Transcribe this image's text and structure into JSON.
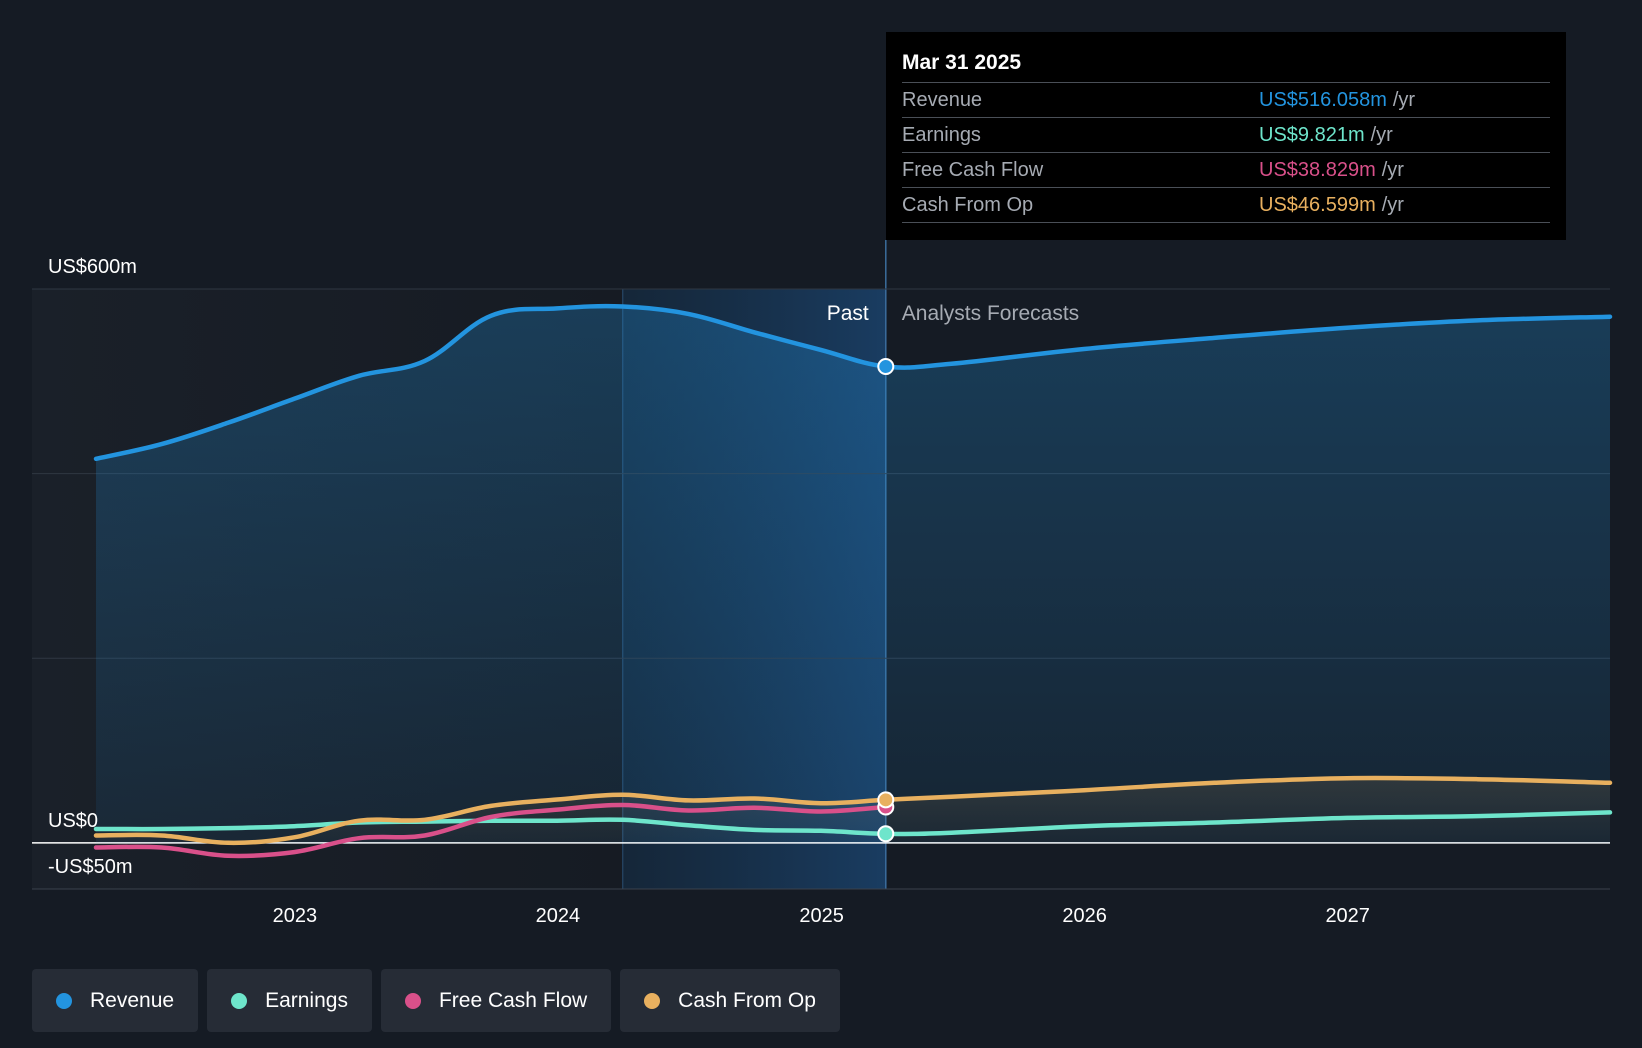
{
  "colors": {
    "background": "#151b24",
    "revenue": "#2394df",
    "earnings": "#6ee5cb",
    "free_cash_flow": "#d9508a",
    "cash_from_op": "#e8b05f"
  },
  "tooltip": {
    "date": "Mar 31 2025",
    "rows": [
      {
        "name": "Revenue",
        "value": "US$516.058m",
        "unit": "/yr",
        "color": "#2394df"
      },
      {
        "name": "Earnings",
        "value": "US$9.821m",
        "unit": "/yr",
        "color": "#6ee5cb"
      },
      {
        "name": "Free Cash Flow",
        "value": "US$38.829m",
        "unit": "/yr",
        "color": "#d9508a"
      },
      {
        "name": "Cash From Op",
        "value": "US$46.599m",
        "unit": "/yr",
        "color": "#e8b05f"
      }
    ]
  },
  "legend": [
    {
      "label": "Revenue",
      "color": "#2394df"
    },
    {
      "label": "Earnings",
      "color": "#6ee5cb"
    },
    {
      "label": "Free Cash Flow",
      "color": "#d9508a"
    },
    {
      "label": "Cash From Op",
      "color": "#e8b05f"
    }
  ],
  "chart_data": {
    "type": "line",
    "y_unit": "US$ m",
    "ylim": [
      -50,
      600
    ],
    "y_tick_labels": [
      {
        "value": 600,
        "label": "US$600m"
      },
      {
        "value": 0,
        "label": "US$0"
      },
      {
        "value": -50,
        "label": "-US$50m"
      }
    ],
    "gridlines": [
      600,
      400,
      200
    ],
    "xlim": [
      "2022-03-31",
      "2027-12-31"
    ],
    "x_ticks": [
      {
        "date": "2023-01-01",
        "label": "2023"
      },
      {
        "date": "2024-01-01",
        "label": "2024"
      },
      {
        "date": "2025-01-01",
        "label": "2025"
      },
      {
        "date": "2026-01-01",
        "label": "2026"
      },
      {
        "date": "2027-01-01",
        "label": "2027"
      }
    ],
    "past_label": "Past",
    "forecast_label": "Analysts Forecasts",
    "forecast_start": "2025-03-31",
    "highlight_start": "2024-03-31",
    "series": [
      {
        "name": "Revenue",
        "color": "#2394df",
        "points": [
          [
            "2022-03-31",
            416
          ],
          [
            "2022-06-30",
            432
          ],
          [
            "2022-09-30",
            455
          ],
          [
            "2022-12-31",
            481
          ],
          [
            "2023-03-31",
            506
          ],
          [
            "2023-06-30",
            522
          ],
          [
            "2023-09-30",
            571
          ],
          [
            "2023-12-31",
            579
          ],
          [
            "2024-03-31",
            581
          ],
          [
            "2024-06-30",
            573
          ],
          [
            "2024-09-30",
            553
          ],
          [
            "2024-12-31",
            534
          ],
          [
            "2025-03-31",
            516
          ],
          [
            "2025-06-30",
            519
          ],
          [
            "2025-12-31",
            535
          ],
          [
            "2026-06-30",
            547
          ],
          [
            "2026-12-31",
            558
          ],
          [
            "2027-06-30",
            566
          ],
          [
            "2027-12-31",
            570
          ]
        ]
      },
      {
        "name": "Earnings",
        "color": "#6ee5cb",
        "points": [
          [
            "2022-03-31",
            15
          ],
          [
            "2022-06-30",
            15
          ],
          [
            "2022-09-30",
            16
          ],
          [
            "2022-12-31",
            18
          ],
          [
            "2023-03-31",
            22
          ],
          [
            "2023-06-30",
            23
          ],
          [
            "2023-09-30",
            24
          ],
          [
            "2023-12-31",
            24
          ],
          [
            "2024-03-31",
            25
          ],
          [
            "2024-06-30",
            19
          ],
          [
            "2024-09-30",
            14
          ],
          [
            "2024-12-31",
            13
          ],
          [
            "2025-03-31",
            9.8
          ],
          [
            "2025-06-30",
            11
          ],
          [
            "2025-12-31",
            18
          ],
          [
            "2026-06-30",
            22
          ],
          [
            "2026-12-31",
            27
          ],
          [
            "2027-06-30",
            29
          ],
          [
            "2027-12-31",
            33
          ]
        ]
      },
      {
        "name": "Free Cash Flow",
        "color": "#d9508a",
        "points": [
          [
            "2022-03-31",
            -5
          ],
          [
            "2022-06-30",
            -5
          ],
          [
            "2022-09-30",
            -14
          ],
          [
            "2022-12-31",
            -10
          ],
          [
            "2023-03-31",
            5
          ],
          [
            "2023-06-30",
            8
          ],
          [
            "2023-09-30",
            28
          ],
          [
            "2023-12-31",
            36
          ],
          [
            "2024-03-31",
            41
          ],
          [
            "2024-06-30",
            35
          ],
          [
            "2024-09-30",
            38
          ],
          [
            "2024-12-31",
            34
          ],
          [
            "2025-03-31",
            38.8
          ]
        ]
      },
      {
        "name": "Cash From Op",
        "color": "#e8b05f",
        "points": [
          [
            "2022-03-31",
            8
          ],
          [
            "2022-06-30",
            8
          ],
          [
            "2022-09-30",
            0
          ],
          [
            "2022-12-31",
            6
          ],
          [
            "2023-03-31",
            24
          ],
          [
            "2023-06-30",
            25
          ],
          [
            "2023-09-30",
            40
          ],
          [
            "2023-12-31",
            47
          ],
          [
            "2024-03-31",
            52
          ],
          [
            "2024-06-30",
            46
          ],
          [
            "2024-09-30",
            48
          ],
          [
            "2024-12-31",
            43
          ],
          [
            "2025-03-31",
            46.6
          ],
          [
            "2025-06-30",
            50
          ],
          [
            "2025-12-31",
            57
          ],
          [
            "2026-06-30",
            65
          ],
          [
            "2026-12-31",
            70
          ],
          [
            "2027-06-30",
            69
          ],
          [
            "2027-12-31",
            65
          ]
        ]
      }
    ]
  }
}
